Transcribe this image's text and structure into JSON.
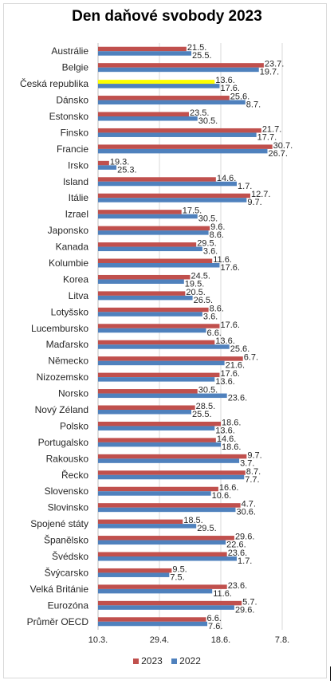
{
  "title": "Den daňové svobody 2023",
  "colors": {
    "series_2023": "#c0504d",
    "series_2022": "#4f81bd",
    "highlight": "#ffff00"
  },
  "chart_data": {
    "type": "bar",
    "orientation": "horizontal",
    "title": "Den daňové svobody 2023",
    "categories": [
      "Austrálie",
      "Belgie",
      "Česká republika",
      "Dánsko",
      "Estonsko",
      "Finsko",
      "Francie",
      "Irsko",
      "Island",
      "Itálie",
      "Izrael",
      "Japonsko",
      "Kanada",
      "Kolumbie",
      "Korea",
      "Litva",
      "Lotyšsko",
      "Lucembursko",
      "Maďarsko",
      "Německo",
      "Nizozemsko",
      "Norsko",
      "Nový Zéland",
      "Polsko",
      "Portugalsko",
      "Rakousko",
      "Řecko",
      "Slovensko",
      "Slovinsko",
      "Spojené státy",
      "Španělsko",
      "Švédsko",
      "Švýcarsko",
      "Velká Británie",
      "Eurozóna",
      "Průměr OECD"
    ],
    "highlight_category": "Česká republika",
    "x_ticks": [
      {
        "label": "10.3.",
        "value": 69
      },
      {
        "label": "29.4.",
        "value": 119
      },
      {
        "label": "18.6.",
        "value": 169
      },
      {
        "label": "7.8.",
        "value": 219
      }
    ],
    "xlim": [
      69,
      219
    ],
    "legend_position": "bottom",
    "series": [
      {
        "name": "2023",
        "labels": [
          "21.5.",
          "23.7.",
          "13.6.",
          "25.6.",
          "23.5.",
          "21.7.",
          "30.7.",
          "19.3.",
          "14.6.",
          "12.7.",
          "17.5.",
          "9.6.",
          "29.5.",
          "11.6.",
          "24.5.",
          "20.5.",
          "8.6.",
          "17.6.",
          "13.6.",
          "6.7.",
          "17.6.",
          "30.5.",
          "28.5.",
          "18.6.",
          "14.6.",
          "9.7.",
          "8.7.",
          "16.6.",
          "4.7.",
          "18.5.",
          "29.6.",
          "23.6.",
          "9.5.",
          "23.6.",
          "5.7.",
          "6.6."
        ],
        "values": [
          141,
          204,
          164,
          176,
          143,
          202,
          211,
          78,
          165,
          193,
          137,
          160,
          149,
          162,
          144,
          140,
          159,
          168,
          164,
          187,
          168,
          150,
          148,
          169,
          165,
          190,
          189,
          167,
          185,
          138,
          180,
          174,
          129,
          174,
          186,
          157
        ]
      },
      {
        "name": "2022",
        "labels": [
          "25.5.",
          "19.7.",
          "17.6.",
          "8.7.",
          "30.5.",
          "17.7.",
          "26.7.",
          "25.3.",
          "1.7.",
          "9.7.",
          "30.5.",
          "8.6.",
          "3.6.",
          "17.6.",
          "19.5.",
          "26.5.",
          "3.6.",
          "6.6.",
          "25.6.",
          "21.6.",
          "13.6.",
          "23.6.",
          "25.5.",
          "13.6.",
          "18.6.",
          "3.7.",
          "7.7.",
          "10.6.",
          "30.6.",
          "29.5.",
          "22.6.",
          "1.7.",
          "7.5.",
          "11.6.",
          "29.6.",
          "7.6."
        ],
        "values": [
          145,
          200,
          168,
          189,
          150,
          198,
          207,
          84,
          182,
          190,
          150,
          159,
          154,
          168,
          139,
          146,
          154,
          157,
          176,
          172,
          164,
          174,
          145,
          164,
          169,
          184,
          188,
          161,
          181,
          149,
          173,
          182,
          127,
          162,
          180,
          158
        ]
      }
    ]
  }
}
